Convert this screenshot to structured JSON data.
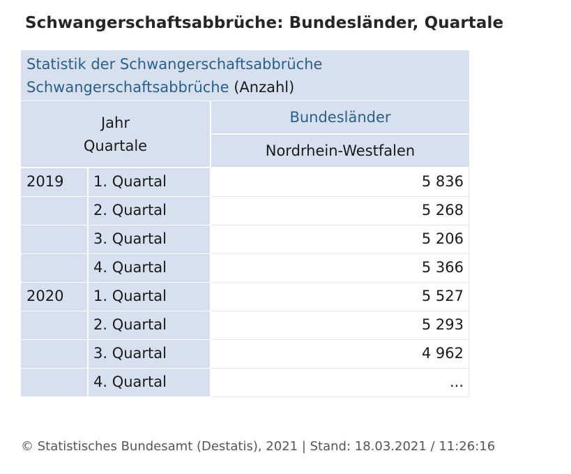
{
  "title": "Schwangerschaftsabbrüche: Bundesländer, Quartale",
  "table": {
    "caption_line1": "Statistik der Schwangerschaftsabbrüche",
    "caption_line2_link": "Schwangerschaftsabbrüche",
    "caption_line2_unit": "(Anzahl)",
    "row_header_line1": "Jahr",
    "row_header_line2": "Quartale",
    "col_group_header": "Bundesländer",
    "col_header": "Nordrhein-Westfalen",
    "rows": [
      {
        "year": "2019",
        "quarter": "1. Quartal",
        "value": "5 836"
      },
      {
        "year": "",
        "quarter": "2. Quartal",
        "value": "5 268"
      },
      {
        "year": "",
        "quarter": "3. Quartal",
        "value": "5 206"
      },
      {
        "year": "",
        "quarter": "4. Quartal",
        "value": "5 366"
      },
      {
        "year": "2020",
        "quarter": "1. Quartal",
        "value": "5 527"
      },
      {
        "year": "",
        "quarter": "2. Quartal",
        "value": "5 293"
      },
      {
        "year": "",
        "quarter": "3. Quartal",
        "value": "4 962"
      },
      {
        "year": "",
        "quarter": "4. Quartal",
        "value": "..."
      }
    ]
  },
  "footer": "© Statistisches Bundesamt (Destatis), 2021 | Stand: 18.03.2021 / 11:26:16"
}
